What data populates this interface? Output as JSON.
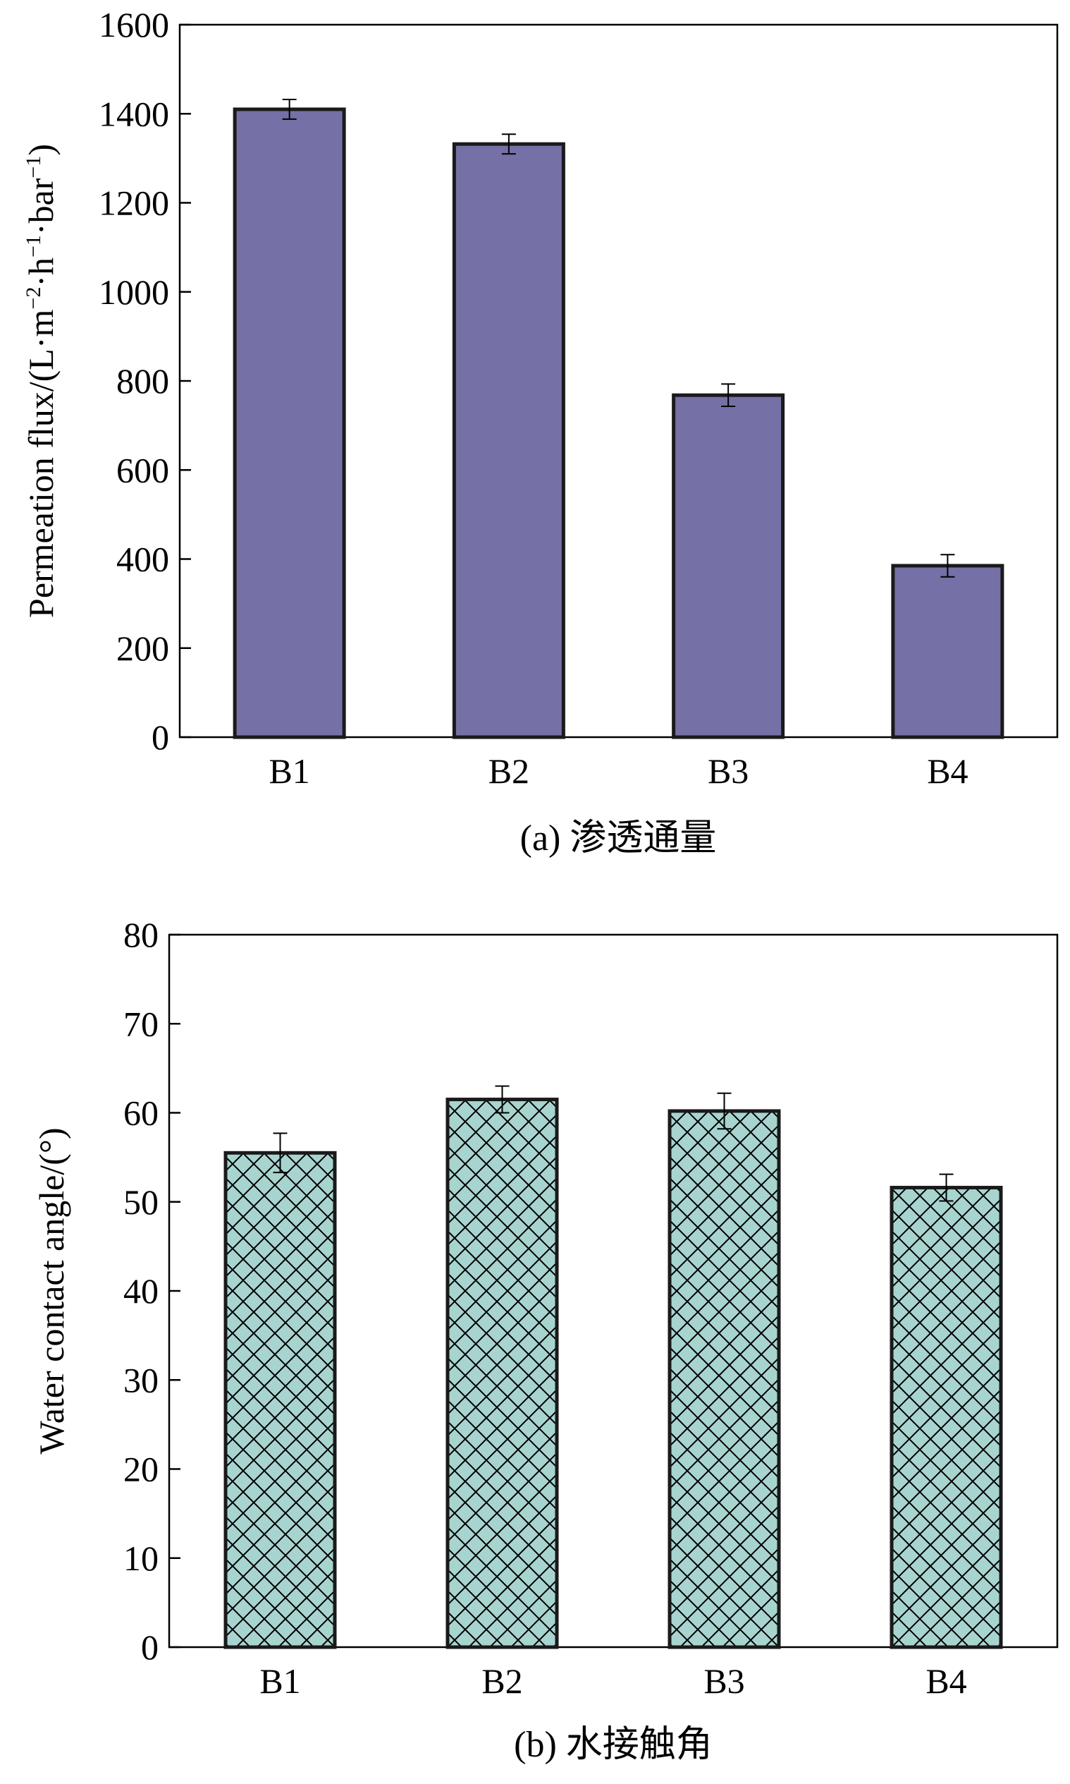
{
  "chart_data": [
    {
      "id": "a",
      "type": "bar",
      "categories": [
        "B1",
        "B2",
        "B3",
        "B4"
      ],
      "values": [
        1410,
        1332,
        768,
        385
      ],
      "errors": [
        22,
        22,
        25,
        25
      ],
      "title": "",
      "caption": "(a) 渗透通量",
      "xlabel": "",
      "ylabel": {
        "base": "Permeation flux/(L·m",
        "sup1": "−2",
        "mid1": "·h",
        "sup2": "−1",
        "mid2": "·bar",
        "sup3": "−1",
        "end": ")"
      },
      "ylim": [
        0,
        1600
      ],
      "yticks": [
        0,
        200,
        400,
        600,
        800,
        1000,
        1200,
        1400,
        1600
      ],
      "bar_color": "#7570a6",
      "pattern": "solid"
    },
    {
      "id": "b",
      "type": "bar",
      "categories": [
        "B1",
        "B2",
        "B3",
        "B4"
      ],
      "values": [
        55.5,
        61.5,
        60.2,
        51.6
      ],
      "errors": [
        2.2,
        1.5,
        2.0,
        1.5
      ],
      "title": "",
      "caption": "(b) 水接触角",
      "xlabel": "",
      "ylabel": "Water contact angle/(°)",
      "ylim": [
        0,
        80
      ],
      "yticks": [
        0,
        10,
        20,
        30,
        40,
        50,
        60,
        70,
        80
      ],
      "bar_color": "#a8d4cf",
      "pattern": "crosshatch"
    }
  ]
}
